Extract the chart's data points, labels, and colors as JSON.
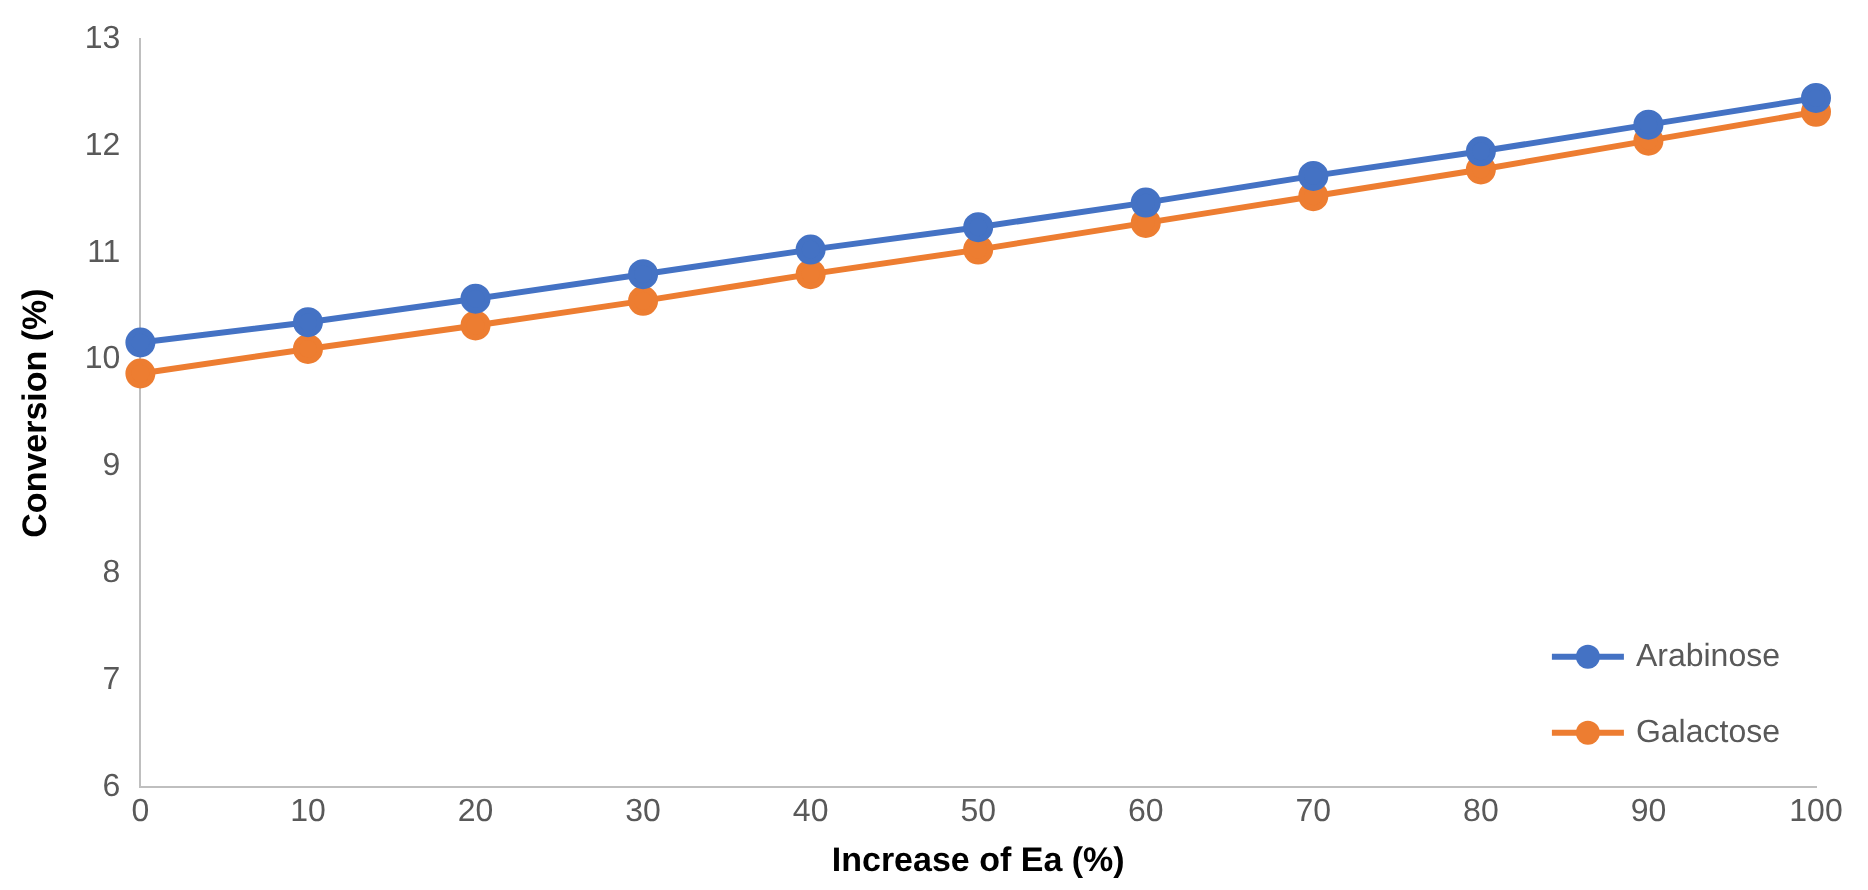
{
  "chart_data": {
    "type": "line",
    "xlabel": "Increase of Ea (%)",
    "ylabel": "Conversion (%)",
    "x": [
      0,
      10,
      20,
      30,
      40,
      50,
      60,
      70,
      80,
      90,
      100
    ],
    "series": [
      {
        "name": "Arabinose",
        "color": "#4472c4",
        "values": [
          10.16,
          10.35,
          10.57,
          10.8,
          11.03,
          11.24,
          11.47,
          11.72,
          11.95,
          12.2,
          12.45
        ]
      },
      {
        "name": "Galactose",
        "color": "#ed7d31",
        "values": [
          9.87,
          10.1,
          10.32,
          10.55,
          10.8,
          11.03,
          11.28,
          11.53,
          11.78,
          12.05,
          12.32
        ]
      }
    ],
    "xlim": [
      0,
      100
    ],
    "xticks": [
      0,
      10,
      20,
      30,
      40,
      50,
      60,
      70,
      80,
      90,
      100
    ],
    "ylim": [
      6,
      13
    ],
    "yticks": [
      6,
      7,
      8,
      9,
      10,
      11,
      12,
      13
    ],
    "grid": false,
    "legend": "bottom right",
    "marker": "circle",
    "line_style": "solid"
  }
}
